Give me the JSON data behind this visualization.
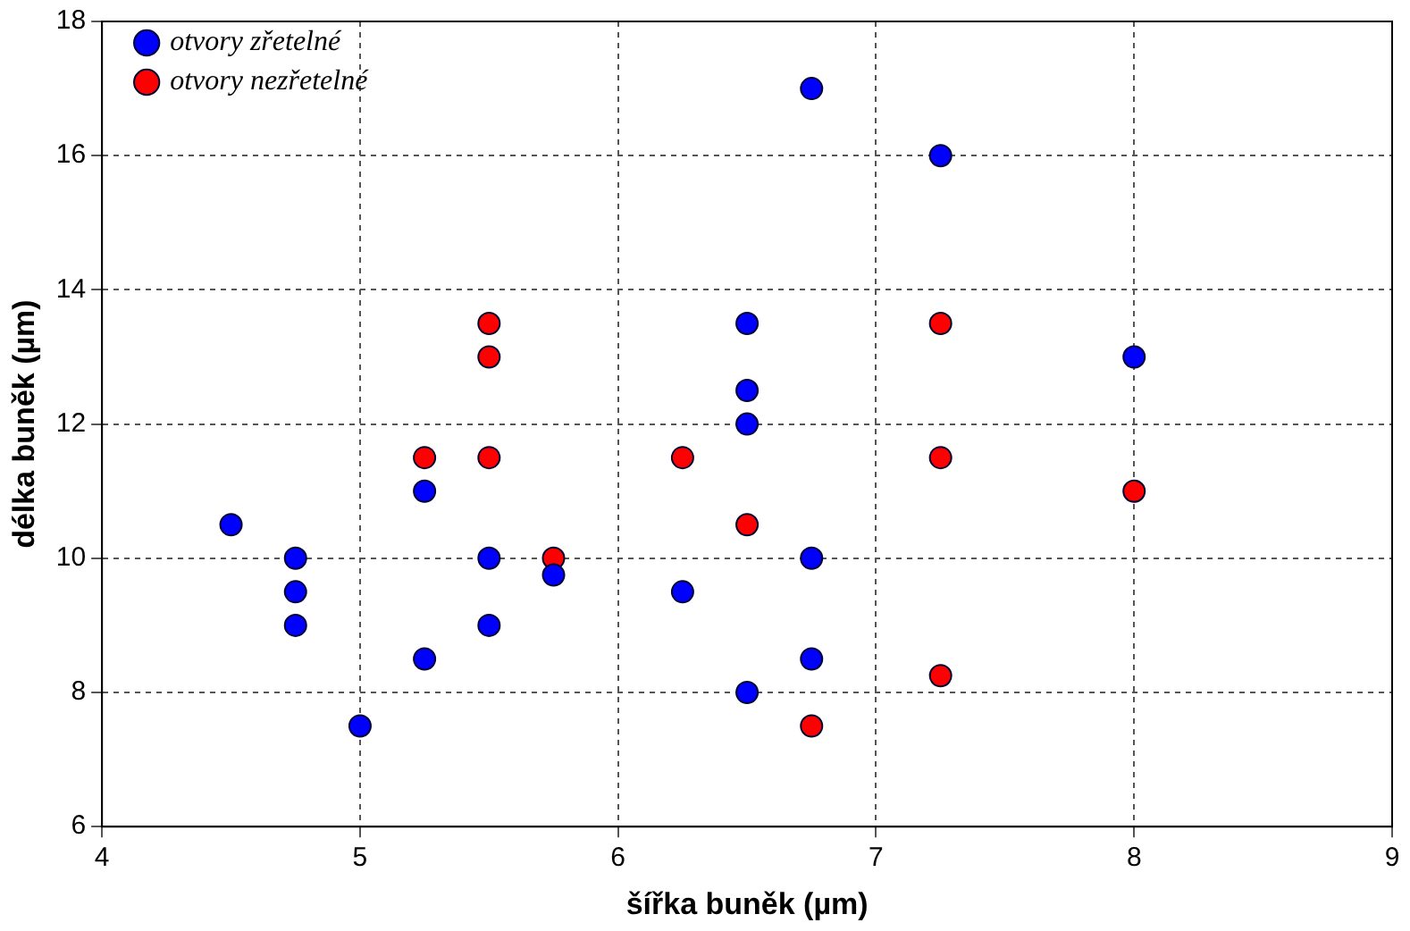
{
  "chart_data": {
    "type": "scatter",
    "xlabel": "šířka buněk (µm)",
    "ylabel": "délka buněk (µm)",
    "xlim": [
      4,
      9
    ],
    "xticks": [
      4,
      5,
      6,
      7,
      8,
      9
    ],
    "ylim": [
      6,
      18
    ],
    "yticks": [
      6,
      8,
      10,
      12,
      14,
      16,
      18
    ],
    "grid": true,
    "legend": "top left",
    "marker": "circle",
    "series": [
      {
        "name": "otvory zřetelné",
        "color": "#0000ff",
        "x": [
          4.5,
          4.75,
          4.75,
          4.75,
          5,
          5.25,
          5.25,
          5.5,
          5.5,
          5.75,
          6.25,
          6.5,
          6.5,
          6.5,
          6.5,
          6.75,
          6.75,
          6.75,
          7.25,
          8
        ],
        "values": [
          10.5,
          10,
          9.5,
          9,
          7.5,
          11,
          8.5,
          10,
          9,
          9.75,
          9.5,
          13.5,
          12.5,
          12,
          8,
          17,
          10,
          8.5,
          16,
          13
        ]
      },
      {
        "name": "otvory nezřetelné",
        "color": "#ff0000",
        "x": [
          5.25,
          5.5,
          5.5,
          5.5,
          5.75,
          6.25,
          6.5,
          6.75,
          7.25,
          7.25,
          7.25,
          8
        ],
        "values": [
          11.5,
          13.5,
          13,
          11.5,
          10,
          11.5,
          10.5,
          7.5,
          13.5,
          11.5,
          8.25,
          11
        ]
      }
    ]
  }
}
